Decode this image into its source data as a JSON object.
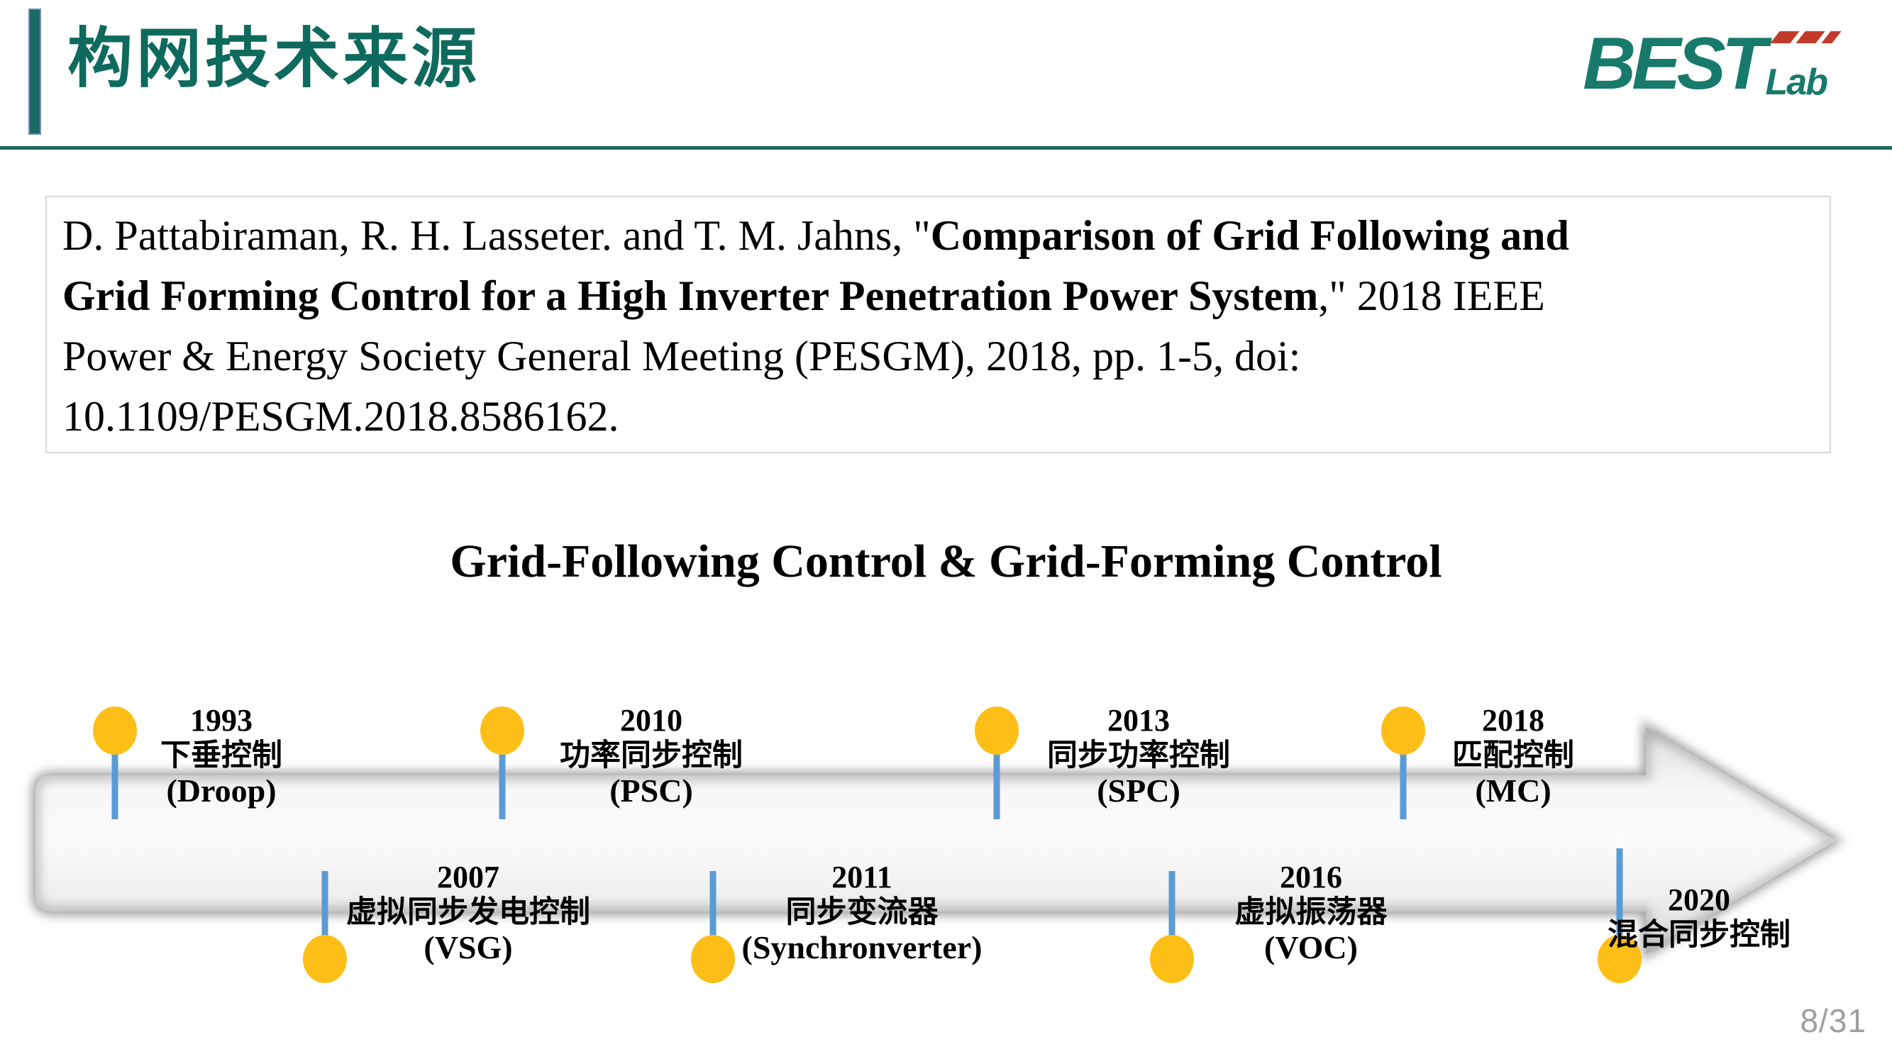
{
  "slide": {
    "title": "构网技术来源",
    "logo": {
      "main": "BEST",
      "sub": "Lab"
    },
    "page_number": "8/31"
  },
  "citation": {
    "lines": [
      [
        {
          "t": "D. Pattabiraman, R. H. Lasseter. and T. M. Jahns, \"",
          "b": false
        },
        {
          "t": "Comparison of Grid Following and",
          "b": true
        }
      ],
      [
        {
          "t": "Grid Forming Control for a High Inverter Penetration Power System",
          "b": true
        },
        {
          "t": ",\" 2018 IEEE",
          "b": false
        }
      ],
      [
        {
          "t": "Power & Energy Society General Meeting (PESGM), 2018, pp. 1-5, doi:",
          "b": false
        }
      ],
      [
        {
          "t": "10.1109/PESGM.2018.8586162.",
          "b": false
        }
      ]
    ]
  },
  "diagram": {
    "heading": "Grid-Following Control & Grid-Forming Control",
    "events": [
      {
        "year": "1993",
        "name_zh": "下垂控制",
        "abbr": "(Droop)",
        "side": "top"
      },
      {
        "year": "2007",
        "name_zh": "虚拟同步发电控制",
        "abbr": "(VSG)",
        "side": "bottom"
      },
      {
        "year": "2010",
        "name_zh": "功率同步控制",
        "abbr": "(PSC)",
        "side": "top"
      },
      {
        "year": "2011",
        "name_zh": "同步变流器",
        "abbr": "(Synchronverter)",
        "side": "bottom"
      },
      {
        "year": "2013",
        "name_zh": "同步功率控制",
        "abbr": "(SPC)",
        "side": "top"
      },
      {
        "year": "2016",
        "name_zh": "虚拟振荡器",
        "abbr": "(VOC)",
        "side": "bottom"
      },
      {
        "year": "2018",
        "name_zh": "匹配控制",
        "abbr": "(MC)",
        "side": "top"
      },
      {
        "year": "2020",
        "name_zh": "混合同步控制",
        "abbr": "",
        "side": "bottom"
      }
    ],
    "colors": {
      "marker_yellow": "#FDBF17",
      "stem_blue": "#5B9BD5",
      "accent_teal": "#0E6A5C",
      "logo_red": "#C23B2A"
    }
  }
}
